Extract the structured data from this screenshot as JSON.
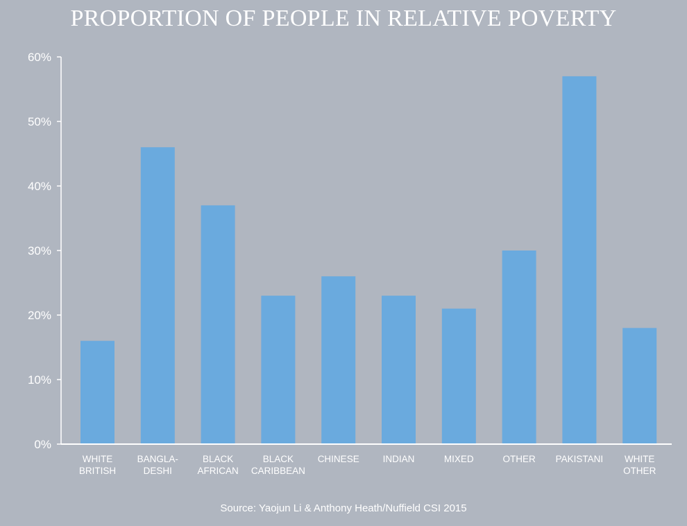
{
  "chart_data": {
    "type": "bar",
    "title": "PROPORTION OF PEOPLE IN RELATIVE POVERTY",
    "categories": [
      [
        "WHITE",
        "BRITISH"
      ],
      [
        "BANGLA-",
        "DESHI"
      ],
      [
        "BLACK",
        "AFRICAN"
      ],
      [
        "BLACK",
        "CARIBBEAN"
      ],
      [
        "CHINESE"
      ],
      [
        "INDIAN"
      ],
      [
        "MIXED"
      ],
      [
        "OTHER"
      ],
      [
        "PAKISTANI"
      ],
      [
        "WHITE",
        "OTHER"
      ]
    ],
    "values": [
      16,
      46,
      37,
      23,
      26,
      23,
      21,
      30,
      57,
      18
    ],
    "yticks": [
      "0%",
      "10%",
      "20%",
      "30%",
      "40%",
      "50%",
      "60%"
    ],
    "ylim": [
      0,
      60
    ],
    "xlabel": "",
    "ylabel": "",
    "source": "Source: Yaojun Li & Anthony Heath/Nuffield CSI 2015",
    "colors": {
      "bar": "#6aaade",
      "axis": "#ffffff",
      "text": "#ffffff",
      "background": "#b0b6c0"
    }
  }
}
